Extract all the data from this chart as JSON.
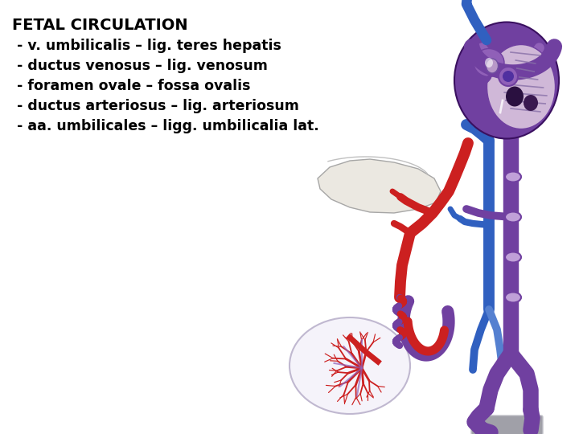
{
  "title": "FETAL CIRCULATION",
  "lines": [
    " - v. umbilicalis – lig. teres hepatis",
    " - ductus venosus – lig. venosum",
    " - foramen ovale – fossa ovalis",
    " - ductus arteriosus – lig. arteriosum",
    " - aa. umbilicales – ligg. umbilicalia lat."
  ],
  "bg_color": "#ffffff",
  "text_color": "#000000",
  "title_fontsize": 14,
  "body_fontsize": 12.5,
  "colors": {
    "purple": "#7040A0",
    "purple2": "#9060B8",
    "purple_light": "#C0A0D8",
    "blue": "#3060C0",
    "blue2": "#5580D0",
    "red": "#CC2020",
    "red2": "#AA1010",
    "dark_red": "#881010",
    "liver_color": "#E8E4DC",
    "placenta_bg": "#F2F0F8",
    "gray": "#A0A0A8",
    "gray2": "#C0C0C8",
    "heart_inner": "#D0B8D8",
    "heart_cut": "#1A0820",
    "heart_muscle": "#8060A0"
  }
}
